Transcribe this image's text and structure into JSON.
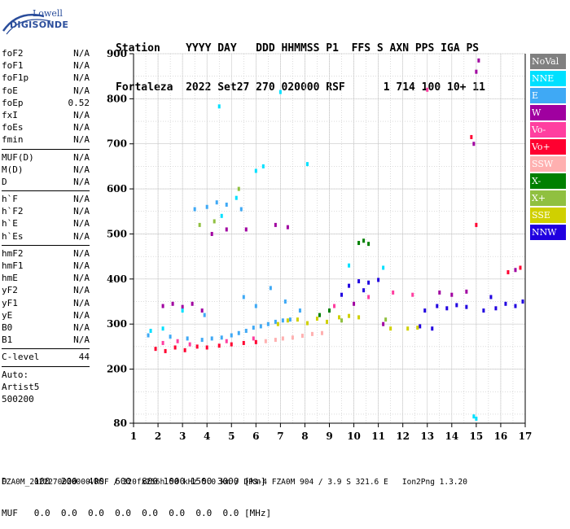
{
  "logo": {
    "line1": "Lowell",
    "line2": "DIGISONDE"
  },
  "header": {
    "row1": "Station    YYYY DAY   DDD HHMMSS P1  FFS S AXN PPS IGA PS",
    "row2": "Fortaleza  2022 Set27 270 020000 RSF      1 714 100 10+ 11"
  },
  "params_group1": [
    {
      "name": "foF2",
      "value": "N/A"
    },
    {
      "name": "foF1",
      "value": "N/A"
    },
    {
      "name": "foF1p",
      "value": "N/A"
    },
    {
      "name": "foE",
      "value": "N/A"
    },
    {
      "name": "foEp",
      "value": "0.52"
    },
    {
      "name": "fxI",
      "value": "N/A"
    },
    {
      "name": "foEs",
      "value": "N/A"
    },
    {
      "name": "fmin",
      "value": "N/A"
    }
  ],
  "params_group2": [
    {
      "name": "MUF(D)",
      "value": "N/A"
    },
    {
      "name": "M(D)",
      "value": "N/A"
    },
    {
      "name": "D",
      "value": "N/A"
    }
  ],
  "params_group3": [
    {
      "name": "h`F",
      "value": "N/A"
    },
    {
      "name": "h`F2",
      "value": "N/A"
    },
    {
      "name": "h`E",
      "value": "N/A"
    },
    {
      "name": "h`Es",
      "value": "N/A"
    }
  ],
  "params_group4": [
    {
      "name": "hmF2",
      "value": "N/A"
    },
    {
      "name": "hmF1",
      "value": "N/A"
    },
    {
      "name": "hmE",
      "value": "N/A"
    },
    {
      "name": "yF2",
      "value": "N/A"
    },
    {
      "name": "yF1",
      "value": "N/A"
    },
    {
      "name": "yE",
      "value": "N/A"
    },
    {
      "name": "B0",
      "value": "N/A"
    },
    {
      "name": "B1",
      "value": "N/A"
    }
  ],
  "c_level": {
    "name": "C-level",
    "value": "44"
  },
  "auto": {
    "line1": "Auto:",
    "line2": "Artist5",
    "line3": "500200"
  },
  "legend": [
    {
      "label": "NoVal",
      "color": "#808080"
    },
    {
      "label": "NNE",
      "color": "#00e0ff"
    },
    {
      "label": "E",
      "color": "#3fa9f5"
    },
    {
      "label": "W",
      "color": "#a000a0"
    },
    {
      "label": "Vo-",
      "color": "#ff3fa0"
    },
    {
      "label": "Vo+",
      "color": "#ff0030"
    },
    {
      "label": "SSW",
      "color": "#ffb0b0"
    },
    {
      "label": "X-",
      "color": "#008000"
    },
    {
      "label": "X+",
      "color": "#90c040"
    },
    {
      "label": "SSE",
      "color": "#d0d000"
    },
    {
      "label": "NNW",
      "color": "#2000e0"
    }
  ],
  "footer": {
    "row1": "D     100  200  400  600  800 1000 1500 3000 [km]",
    "row2": "MUF   0.0  0.0  0.0  0.0  0.0  0.0  0.0  0.0 [MHz]",
    "row3": "FZA0M_2022270020000.RSF / 320fx256h 50 kHz 5.0 km / DPS-4 FZA0M 904 / 3.9 S 321.6 E   Ion2Png 1.3.20"
  },
  "chart_data": {
    "type": "scatter",
    "xlim": [
      1,
      17
    ],
    "ylim": [
      80,
      900
    ],
    "x_ticks": [
      1,
      2,
      3,
      4,
      5,
      6,
      7,
      8,
      9,
      10,
      11,
      12,
      13,
      14,
      15,
      16,
      17
    ],
    "y_ticks": [
      80,
      200,
      300,
      400,
      500,
      600,
      700,
      800,
      900
    ],
    "grid": true,
    "series": [
      {
        "name": "E",
        "points": [
          [
            1.6,
            275
          ],
          [
            2.5,
            272
          ],
          [
            3.2,
            268
          ],
          [
            3.8,
            265
          ],
          [
            4.2,
            268
          ],
          [
            4.6,
            270
          ],
          [
            5.0,
            275
          ],
          [
            5.3,
            280
          ],
          [
            5.6,
            285
          ],
          [
            5.9,
            292
          ],
          [
            6.2,
            295
          ],
          [
            6.5,
            300
          ],
          [
            6.8,
            305
          ],
          [
            7.1,
            308
          ],
          [
            7.4,
            310
          ],
          [
            3.5,
            555
          ],
          [
            4.0,
            560
          ],
          [
            4.4,
            570
          ],
          [
            4.8,
            565
          ],
          [
            5.4,
            555
          ],
          [
            3.9,
            320
          ],
          [
            5.5,
            360
          ],
          [
            6.0,
            340
          ],
          [
            6.6,
            380
          ],
          [
            7.2,
            350
          ],
          [
            7.8,
            330
          ]
        ]
      },
      {
        "name": "W",
        "points": [
          [
            2.2,
            340
          ],
          [
            2.6,
            345
          ],
          [
            3.0,
            338
          ],
          [
            3.4,
            345
          ],
          [
            3.8,
            330
          ],
          [
            6.8,
            520
          ],
          [
            7.3,
            515
          ],
          [
            4.2,
            500
          ],
          [
            4.8,
            510
          ],
          [
            5.6,
            510
          ],
          [
            13.5,
            370
          ],
          [
            14.0,
            365
          ],
          [
            14.6,
            372
          ],
          [
            14.9,
            700
          ],
          [
            15.0,
            860
          ],
          [
            15.1,
            885
          ],
          [
            11.2,
            300
          ],
          [
            10.0,
            345
          ],
          [
            16.6,
            420
          ]
        ]
      },
      {
        "name": "NNW",
        "points": [
          [
            9.8,
            385
          ],
          [
            10.2,
            395
          ],
          [
            10.6,
            392
          ],
          [
            11.0,
            398
          ],
          [
            10.4,
            375
          ],
          [
            12.9,
            330
          ],
          [
            13.4,
            340
          ],
          [
            13.8,
            335
          ],
          [
            14.2,
            342
          ],
          [
            14.6,
            338
          ],
          [
            15.3,
            330
          ],
          [
            15.8,
            335
          ],
          [
            16.2,
            345
          ],
          [
            16.6,
            340
          ],
          [
            12.7,
            295
          ],
          [
            13.2,
            290
          ],
          [
            9.5,
            365
          ],
          [
            15.6,
            360
          ],
          [
            16.9,
            350
          ]
        ]
      },
      {
        "name": "SSE",
        "points": [
          [
            6.9,
            300
          ],
          [
            7.3,
            308
          ],
          [
            7.7,
            310
          ],
          [
            8.1,
            302
          ],
          [
            8.5,
            312
          ],
          [
            8.9,
            305
          ],
          [
            9.4,
            315
          ],
          [
            9.8,
            318
          ],
          [
            10.2,
            315
          ],
          [
            11.5,
            290
          ],
          [
            12.2,
            290
          ],
          [
            12.6,
            292
          ]
        ]
      },
      {
        "name": "Vo+",
        "points": [
          [
            1.9,
            245
          ],
          [
            2.3,
            240
          ],
          [
            2.7,
            248
          ],
          [
            3.1,
            242
          ],
          [
            3.6,
            250
          ],
          [
            4.0,
            248
          ],
          [
            4.5,
            252
          ],
          [
            5.0,
            255
          ],
          [
            5.5,
            258
          ],
          [
            6.0,
            260
          ],
          [
            14.8,
            715
          ],
          [
            15.0,
            520
          ],
          [
            16.3,
            415
          ],
          [
            16.8,
            425
          ]
        ]
      },
      {
        "name": "Vo-",
        "points": [
          [
            2.2,
            258
          ],
          [
            2.8,
            262
          ],
          [
            3.3,
            255
          ],
          [
            4.8,
            262
          ],
          [
            5.9,
            268
          ],
          [
            9.2,
            340
          ],
          [
            10.6,
            360
          ],
          [
            11.6,
            370
          ],
          [
            12.4,
            365
          ],
          [
            13.0,
            820
          ]
        ]
      },
      {
        "name": "SSW",
        "points": [
          [
            6.4,
            262
          ],
          [
            6.8,
            265
          ],
          [
            7.1,
            268
          ],
          [
            7.5,
            270
          ],
          [
            7.9,
            274
          ],
          [
            8.3,
            278
          ],
          [
            8.7,
            280
          ]
        ]
      },
      {
        "name": "X-",
        "points": [
          [
            10.2,
            480
          ],
          [
            10.4,
            485
          ],
          [
            10.6,
            478
          ],
          [
            8.6,
            320
          ],
          [
            9.0,
            330
          ]
        ]
      },
      {
        "name": "X+",
        "points": [
          [
            3.7,
            520
          ],
          [
            4.3,
            528
          ],
          [
            9.5,
            308
          ],
          [
            11.3,
            310
          ],
          [
            5.3,
            600
          ]
        ]
      },
      {
        "name": "NNE",
        "points": [
          [
            1.7,
            285
          ],
          [
            2.2,
            290
          ],
          [
            3.0,
            330
          ],
          [
            4.6,
            540
          ],
          [
            5.2,
            580
          ],
          [
            6.0,
            640
          ],
          [
            7.0,
            815
          ],
          [
            8.1,
            655
          ],
          [
            15.0,
            90
          ],
          [
            14.9,
            95
          ],
          [
            11.2,
            425
          ],
          [
            9.8,
            430
          ],
          [
            6.3,
            650
          ],
          [
            4.5,
            783
          ]
        ]
      }
    ]
  }
}
